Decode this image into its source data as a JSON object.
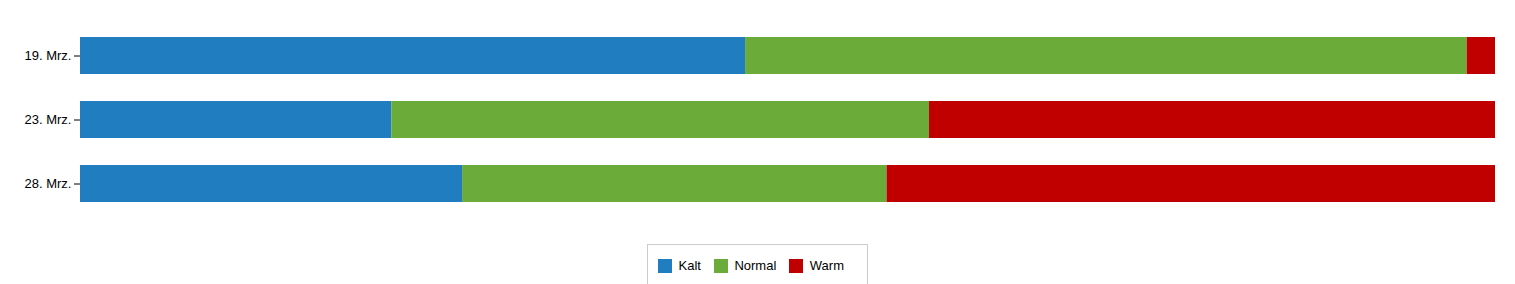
{
  "chart_data": {
    "type": "bar",
    "orientation": "horizontal",
    "stacked": true,
    "categories": [
      "19. Mrz.",
      "23. Mrz.",
      "28. Mrz."
    ],
    "series": [
      {
        "name": "Kalt",
        "color": "#1F7DC0",
        "values": [
          47,
          22,
          27
        ]
      },
      {
        "name": "Normal",
        "color": "#6AAB3A",
        "values": [
          51,
          38,
          30
        ]
      },
      {
        "name": "Warm",
        "color": "#C00000",
        "values": [
          2,
          40,
          43
        ]
      }
    ],
    "xlim": [
      0,
      100
    ],
    "tick_labels": "y",
    "grid": false,
    "legend": "bottom"
  }
}
